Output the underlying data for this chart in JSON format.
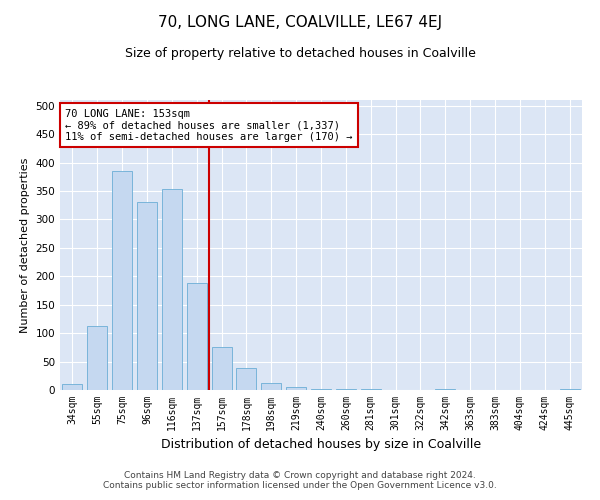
{
  "title": "70, LONG LANE, COALVILLE, LE67 4EJ",
  "subtitle": "Size of property relative to detached houses in Coalville",
  "xlabel": "Distribution of detached houses by size in Coalville",
  "ylabel": "Number of detached properties",
  "categories": [
    "34sqm",
    "55sqm",
    "75sqm",
    "96sqm",
    "116sqm",
    "137sqm",
    "157sqm",
    "178sqm",
    "198sqm",
    "219sqm",
    "240sqm",
    "260sqm",
    "281sqm",
    "301sqm",
    "322sqm",
    "342sqm",
    "363sqm",
    "383sqm",
    "404sqm",
    "424sqm",
    "445sqm"
  ],
  "values": [
    10,
    113,
    385,
    330,
    353,
    188,
    75,
    38,
    12,
    6,
    2,
    1,
    1,
    0,
    0,
    1,
    0,
    0,
    0,
    0,
    1
  ],
  "bar_color": "#c5d8f0",
  "bar_edge_color": "#6baed6",
  "vline_x_index": 6,
  "vline_color": "#cc0000",
  "ylim": [
    0,
    510
  ],
  "yticks": [
    0,
    50,
    100,
    150,
    200,
    250,
    300,
    350,
    400,
    450,
    500
  ],
  "annotation_text": "70 LONG LANE: 153sqm\n← 89% of detached houses are smaller (1,337)\n11% of semi-detached houses are larger (170) →",
  "annotation_box_facecolor": "#ffffff",
  "annotation_box_edgecolor": "#cc0000",
  "fig_bg_color": "#ffffff",
  "plot_bg_color": "#dce6f5",
  "grid_color": "#ffffff",
  "footer_line1": "Contains HM Land Registry data © Crown copyright and database right 2024.",
  "footer_line2": "Contains public sector information licensed under the Open Government Licence v3.0.",
  "title_fontsize": 11,
  "subtitle_fontsize": 9,
  "ylabel_fontsize": 8,
  "xlabel_fontsize": 9,
  "tick_fontsize": 7,
  "annotation_fontsize": 7.5,
  "footer_fontsize": 6.5
}
